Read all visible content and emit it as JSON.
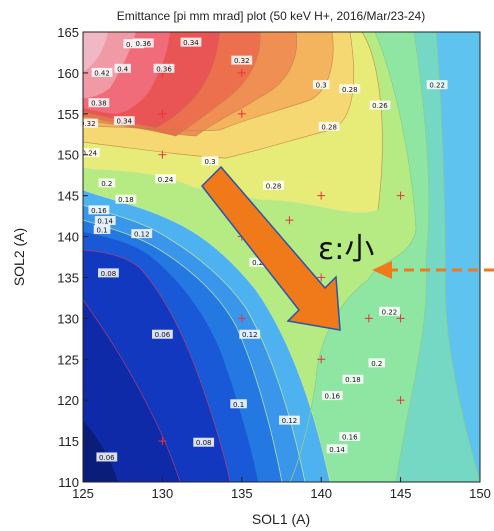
{
  "chart_data": {
    "type": "contour",
    "title": "Emittance [pi mm mrad] plot (50 keV H+, 2016/Mar/23-24)",
    "xlabel": "SOL1 (A)",
    "ylabel": "SOL2 (A)",
    "xlim": [
      125,
      150
    ],
    "ylim": [
      110,
      165
    ],
    "x_ticks": [
      "125",
      "130",
      "135",
      "140",
      "145",
      "150"
    ],
    "y_ticks": [
      "110",
      "115",
      "120",
      "125",
      "130",
      "135",
      "140",
      "145",
      "150",
      "155",
      "160",
      "165"
    ],
    "grid": false,
    "contour_levels": [
      0.04,
      0.06,
      0.08,
      0.1,
      0.12,
      0.14,
      0.16,
      0.18,
      0.2,
      0.22,
      0.24,
      0.26,
      0.28,
      0.3,
      0.32,
      0.34,
      0.36,
      0.38,
      0.4,
      0.42
    ],
    "min_region": {
      "x": 142,
      "y": 134
    },
    "contour_labels": [
      {
        "text": "0.42",
        "x": 126.2,
        "y": 160.0
      },
      {
        "text": "0.4",
        "x": 127.5,
        "y": 160.5
      },
      {
        "text": "0.38",
        "x": 128.2,
        "y": 163.5
      },
      {
        "text": "0.38",
        "x": 126.0,
        "y": 156.3
      },
      {
        "text": "0.36",
        "x": 128.8,
        "y": 163.6
      },
      {
        "text": "0.36",
        "x": 130.1,
        "y": 160.5
      },
      {
        "text": "0.34",
        "x": 131.8,
        "y": 163.7
      },
      {
        "text": "0.34",
        "x": 127.6,
        "y": 154.1
      },
      {
        "text": "0.32",
        "x": 125.3,
        "y": 153.8
      },
      {
        "text": "0.32",
        "x": 135.0,
        "y": 161.5
      },
      {
        "text": "0.3",
        "x": 140.0,
        "y": 158.5
      },
      {
        "text": "0.3",
        "x": 133.0,
        "y": 149.2
      },
      {
        "text": "0.28",
        "x": 141.8,
        "y": 158.0
      },
      {
        "text": "0.28",
        "x": 140.5,
        "y": 153.4
      },
      {
        "text": "0.28",
        "x": 137.0,
        "y": 146.2
      },
      {
        "text": "0.26",
        "x": 143.7,
        "y": 156.0
      },
      {
        "text": "0.24",
        "x": 125.4,
        "y": 150.2
      },
      {
        "text": "0.24",
        "x": 130.2,
        "y": 147.0
      },
      {
        "text": "0.22",
        "x": 147.3,
        "y": 158.5
      },
      {
        "text": "0.22",
        "x": 144.3,
        "y": 130.8
      },
      {
        "text": "0.2",
        "x": 126.5,
        "y": 146.5
      },
      {
        "text": "0.2",
        "x": 136.0,
        "y": 136.8
      },
      {
        "text": "0.2",
        "x": 143.5,
        "y": 124.5
      },
      {
        "text": "0.18",
        "x": 127.7,
        "y": 144.5
      },
      {
        "text": "0.18",
        "x": 142.0,
        "y": 122.5
      },
      {
        "text": "0.16",
        "x": 126.0,
        "y": 143.2
      },
      {
        "text": "0.16",
        "x": 140.7,
        "y": 120.5
      },
      {
        "text": "0.16",
        "x": 141.8,
        "y": 115.5
      },
      {
        "text": "0.14",
        "x": 126.4,
        "y": 141.9
      },
      {
        "text": "0.14",
        "x": 141.0,
        "y": 114.0
      },
      {
        "text": "0.12",
        "x": 128.7,
        "y": 140.3
      },
      {
        "text": "0.12",
        "x": 135.5,
        "y": 128.0
      },
      {
        "text": "0.12",
        "x": 138.0,
        "y": 117.5
      },
      {
        "text": "0.1",
        "x": 126.2,
        "y": 140.8
      },
      {
        "text": "0.1",
        "x": 134.8,
        "y": 119.5
      },
      {
        "text": "0.08",
        "x": 126.6,
        "y": 135.5
      },
      {
        "text": "0.08",
        "x": 132.6,
        "y": 114.8
      },
      {
        "text": "0.06",
        "x": 130.0,
        "y": 128.0
      },
      {
        "text": "0.06",
        "x": 126.5,
        "y": 113.0
      }
    ],
    "measurements": [
      {
        "x": 125,
        "y": 155
      },
      {
        "x": 130,
        "y": 160
      },
      {
        "x": 135,
        "y": 160
      },
      {
        "x": 130,
        "y": 150
      },
      {
        "x": 135,
        "y": 155
      },
      {
        "x": 135,
        "y": 145
      },
      {
        "x": 140,
        "y": 145
      },
      {
        "x": 145,
        "y": 145
      },
      {
        "x": 135,
        "y": 140
      },
      {
        "x": 138,
        "y": 142
      },
      {
        "x": 140,
        "y": 135
      },
      {
        "x": 135,
        "y": 130
      },
      {
        "x": 140,
        "y": 125
      },
      {
        "x": 143,
        "y": 130
      },
      {
        "x": 145,
        "y": 130
      },
      {
        "x": 145,
        "y": 120
      },
      {
        "x": 130,
        "y": 115
      },
      {
        "x": 130,
        "y": 155
      }
    ]
  },
  "annotation": {
    "text": "ε:小",
    "arrow_color": "#f07a1a"
  }
}
